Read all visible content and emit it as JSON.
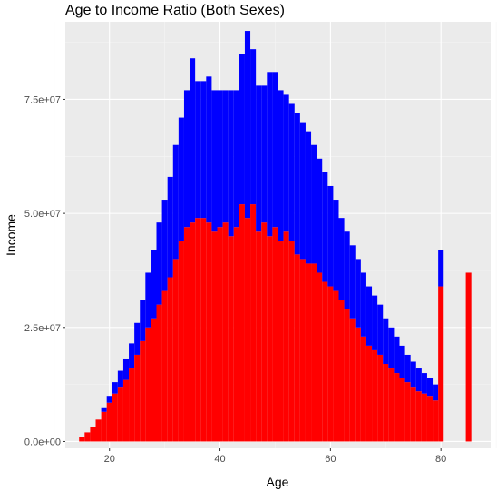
{
  "chart_data": {
    "type": "bar",
    "title": "Age to Income Ratio (Both Sexes)",
    "xlabel": "Age",
    "ylabel": "Income",
    "xlim": [
      12,
      89
    ],
    "ylim": [
      -1500000,
      92000000
    ],
    "xticks": [
      20,
      40,
      60,
      80
    ],
    "xtick_labels": [
      "20",
      "40",
      "60",
      "80"
    ],
    "yticks": [
      0,
      25000000,
      50000000,
      75000000
    ],
    "ytick_labels": [
      "0.0e+00",
      "2.5e+07",
      "5.0e+07",
      "7.5e+07"
    ],
    "grid": true,
    "legend": "none",
    "stacked": true,
    "x": [
      15,
      16,
      17,
      18,
      19,
      20,
      21,
      22,
      23,
      24,
      25,
      26,
      27,
      28,
      29,
      30,
      31,
      32,
      33,
      34,
      35,
      36,
      37,
      38,
      39,
      40,
      41,
      42,
      43,
      44,
      45,
      46,
      47,
      48,
      49,
      50,
      51,
      52,
      53,
      54,
      55,
      56,
      57,
      58,
      59,
      60,
      61,
      62,
      63,
      64,
      65,
      66,
      67,
      68,
      69,
      70,
      71,
      72,
      73,
      74,
      75,
      76,
      77,
      78,
      79,
      80,
      85
    ],
    "series": [
      {
        "color": "#ff0000",
        "values": [
          1000000.0,
          2000000.0,
          3200000.0,
          4800000.0,
          6500000.0,
          8500000.0,
          10500000.0,
          12000000.0,
          13500000.0,
          16000000.0,
          19000000.0,
          22000000.0,
          25000000.0,
          27000000.0,
          30000000.0,
          33000000.0,
          36000000.0,
          40000000.0,
          44000000.0,
          47000000.0,
          48000000.0,
          49000000.0,
          49000000.0,
          48000000.0,
          46000000.0,
          47000000.0,
          48000000.0,
          45000000.0,
          47000000.0,
          52000000.0,
          49000000.0,
          52000000.0,
          46000000.0,
          48000000.0,
          45000000.0,
          47000000.0,
          44000000.0,
          46000000.0,
          44000000.0,
          41000000.0,
          40000000.0,
          39000000.0,
          39000000.0,
          37000000.0,
          35000000.0,
          34000000.0,
          33000000.0,
          31000000.0,
          29000000.0,
          27000000.0,
          25000000.0,
          23000000.0,
          21000000.0,
          20000000.0,
          19000000.0,
          17000000.0,
          16000000.0,
          15000000.0,
          14000000.0,
          13000000.0,
          12000000.0,
          11000000.0,
          10500000.0,
          10000000.0,
          9000000.0,
          34000000.0,
          37000000.0
        ]
      },
      {
        "color": "#0000ff",
        "values": [
          0,
          0,
          0,
          0,
          1000000.0,
          1500000.0,
          2500000.0,
          3500000.0,
          4500000.0,
          5500000.0,
          7000000.0,
          9000000.0,
          12000000.0,
          15000000.0,
          18000000.0,
          20000000.0,
          22000000.0,
          25000000.0,
          27000000.0,
          30000000.0,
          36000000.0,
          30000000.0,
          30000000.0,
          32000000.0,
          31000000.0,
          30000000.0,
          29000000.0,
          32000000.0,
          30000000.0,
          33000000.0,
          41000000.0,
          34000000.0,
          32000000.0,
          30000000.0,
          36000000.0,
          34000000.0,
          33000000.0,
          30000000.0,
          30000000.0,
          31000000.0,
          30000000.0,
          29000000.0,
          26000000.0,
          25000000.0,
          24000000.0,
          22000000.0,
          20000000.0,
          18000000.0,
          17000000.0,
          16000000.0,
          15000000.0,
          14000000.0,
          13000000.0,
          12000000.0,
          11000000.0,
          10000000.0,
          9000000.0,
          8000000.0,
          7000000.0,
          6000000.0,
          5500000.0,
          5000000.0,
          4500000.0,
          4000000.0,
          3500000.0,
          8000000.0,
          0
        ]
      }
    ]
  }
}
